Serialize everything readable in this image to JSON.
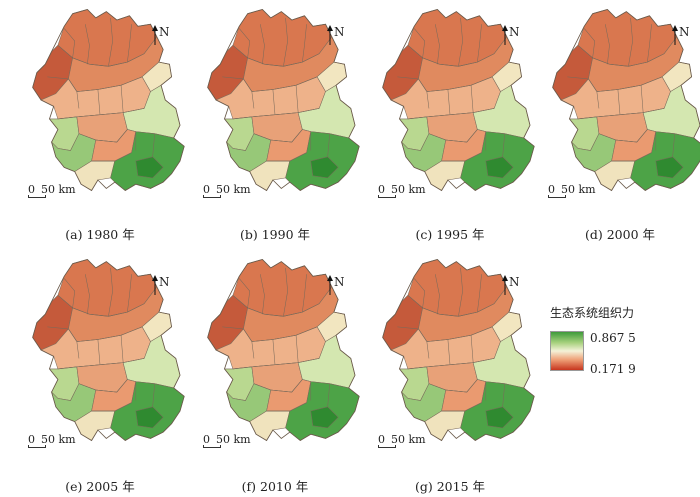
{
  "panels": [
    {
      "caption": "(a) 1980 年"
    },
    {
      "caption": "(b) 1990 年"
    },
    {
      "caption": "(c) 1995 年"
    },
    {
      "caption": "(d) 2000 年"
    },
    {
      "caption": "(e) 2005 年"
    },
    {
      "caption": "(f) 2010 年"
    },
    {
      "caption": "(g) 2015 年"
    }
  ],
  "north_label": "N",
  "scale": {
    "zero": "0",
    "distance": "50 km"
  },
  "legend": {
    "title": "生态系统组织力",
    "max": "0.867 5",
    "min": "0.171 9",
    "colors": {
      "high": "#3e9a3a",
      "mid": "#f4f2d8",
      "low": "#c7351e"
    }
  }
}
